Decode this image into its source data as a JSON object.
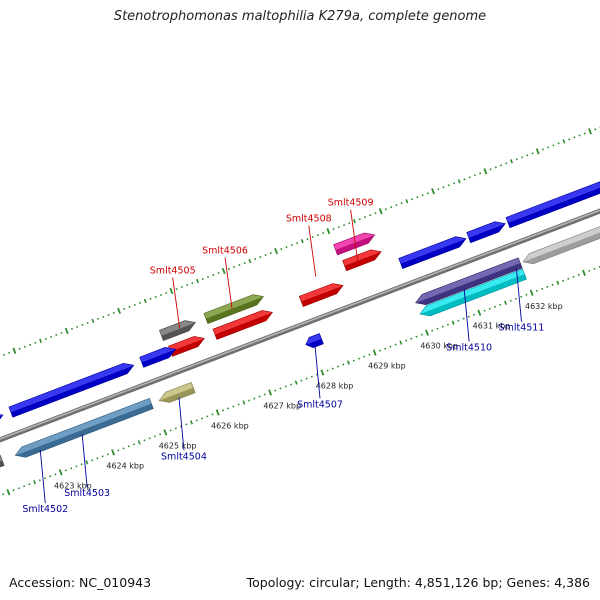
{
  "title": "Stenotrophomonas maltophilia K279a, complete genome",
  "footer": {
    "accession": "Accession: NC_010943",
    "stats": "Topology: circular; Length: 4,851,126 bp; Genes: 4,386"
  },
  "colors": {
    "backbone": "#8c8c8c",
    "tick": "#2e8b2e",
    "top_label": "#cc0000",
    "bottom_label": "#000099",
    "leader_top": "#cc0000",
    "leader_bottom": "#000099"
  },
  "axis": {
    "unit": "kbp",
    "tick_labels": [
      "4623 kbp",
      "4624 kbp",
      "4625 kbp",
      "4626 kbp",
      "4627 kbp",
      "4628 kbp",
      "4629 kbp",
      "4630 kbp",
      "4631 kbp",
      "4632 kbp"
    ]
  },
  "gene_labels": {
    "top": [
      "Smlt4505",
      "Smlt4506",
      "Smlt4508",
      "Smlt4509"
    ],
    "bottom": [
      "Smlt4502",
      "Smlt4503",
      "Smlt4504",
      "Smlt4507",
      "Smlt4510",
      "Smlt4511"
    ]
  },
  "features": [
    {
      "id": "f01",
      "lane": "plus2",
      "start": 4625.55,
      "end": 4626.2,
      "strand": "plus",
      "color": "#666666"
    },
    {
      "id": "f02",
      "lane": "plus1",
      "start": 4625.6,
      "end": 4626.25,
      "strand": "plus",
      "color": "#ee0000"
    },
    {
      "id": "f03",
      "lane": "plus2",
      "start": 4626.4,
      "end": 4627.5,
      "strand": "plus",
      "color": "#6b8e23"
    },
    {
      "id": "f04",
      "lane": "plus1",
      "start": 4626.45,
      "end": 4627.55,
      "strand": "plus",
      "color": "#ee0000"
    },
    {
      "id": "f05",
      "lane": "plus1",
      "start": 4628.1,
      "end": 4628.9,
      "strand": "plus",
      "color": "#ee0000"
    },
    {
      "id": "f06",
      "lane": "plus3",
      "start": 4629.0,
      "end": 4629.75,
      "strand": "plus",
      "color": "#ee1199"
    },
    {
      "id": "f07",
      "lane": "plus2",
      "start": 4629.05,
      "end": 4629.75,
      "strand": "plus",
      "color": "#ee0000"
    },
    {
      "id": "f08",
      "lane": "plus1",
      "start": 4630.0,
      "end": 4631.25,
      "strand": "plus",
      "color": "#0000ee"
    },
    {
      "id": "f09",
      "lane": "plus1",
      "start": 4631.3,
      "end": 4632.0,
      "strand": "plus",
      "color": "#0000ee"
    },
    {
      "id": "f10",
      "lane": "plus1",
      "start": 4632.05,
      "end": 4634.0,
      "strand": "plus",
      "color": "#0000ee"
    },
    {
      "id": "f11",
      "lane": "minus1",
      "start": 4632.05,
      "end": 4634.0,
      "strand": "minus",
      "color": "#c0c0c0"
    },
    {
      "id": "f12",
      "lane": "minus1",
      "start": 4630.0,
      "end": 4632.0,
      "strand": "minus",
      "color": "#4b3e9c"
    },
    {
      "id": "f13",
      "lane": "minus2",
      "start": 4630.0,
      "end": 4632.0,
      "strand": "minus",
      "color": "#00e5ee"
    },
    {
      "id": "f14",
      "lane": "minus1",
      "start": 4627.9,
      "end": 4628.2,
      "strand": "minus",
      "color": "#0000ee"
    },
    {
      "id": "f15",
      "lane": "plus1",
      "start": 4621.0,
      "end": 4622.4,
      "strand": "plus",
      "color": "#0000ee"
    },
    {
      "id": "f16",
      "lane": "plus1",
      "start": 4622.55,
      "end": 4624.9,
      "strand": "plus",
      "color": "#0000ee"
    },
    {
      "id": "f17",
      "lane": "plus1",
      "start": 4625.05,
      "end": 4625.7,
      "strand": "plus",
      "color": "#0000ee"
    },
    {
      "id": "f18",
      "lane": "minus1",
      "start": 4622.35,
      "end": 4624.95,
      "strand": "minus",
      "color": "#4682b4"
    },
    {
      "id": "f19",
      "lane": "minus1",
      "start": 4625.1,
      "end": 4625.75,
      "strand": "minus",
      "color": "#bdb76b"
    },
    {
      "id": "f20",
      "lane": "minus1",
      "start": 4621.0,
      "end": 4622.1,
      "strand": "minus",
      "color": "#666666"
    }
  ],
  "label_links": [
    {
      "text_ref": "top.0",
      "pos": 4625.9
    },
    {
      "text_ref": "top.1",
      "pos": 4626.9
    },
    {
      "text_ref": "top.2",
      "pos": 4628.5
    },
    {
      "text_ref": "top.3",
      "pos": 4629.3
    },
    {
      "text_ref": "bottom.0",
      "pos": 4622.8
    },
    {
      "text_ref": "bottom.1",
      "pos": 4623.6
    },
    {
      "text_ref": "bottom.2",
      "pos": 4625.45
    },
    {
      "text_ref": "bottom.3",
      "pos": 4628.05
    },
    {
      "text_ref": "bottom.4",
      "pos": 4630.9
    },
    {
      "text_ref": "bottom.5",
      "pos": 4631.9
    }
  ]
}
